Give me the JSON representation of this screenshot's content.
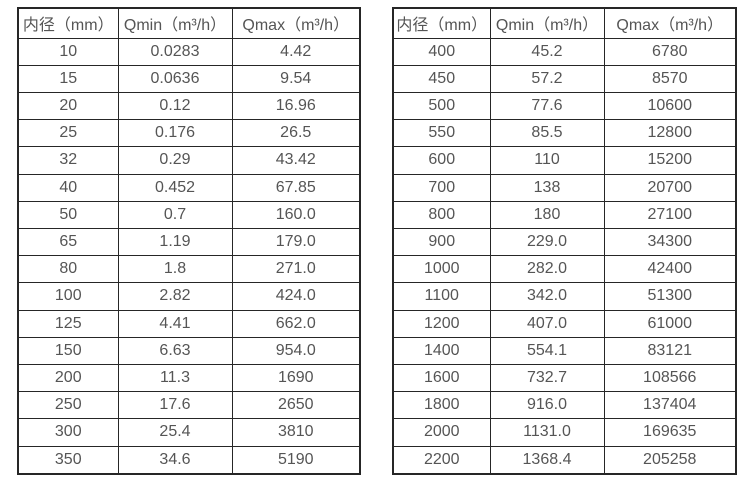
{
  "colors": {
    "background": "#ffffff",
    "text": "#555555",
    "border": "#262626"
  },
  "tables": [
    {
      "name": "flow-spec-small-diameters",
      "headers": [
        "内径（mm）",
        "Qmin（m³/h）",
        "Qmax（m³/h）"
      ],
      "rows": [
        [
          "10",
          "0.0283",
          "4.42"
        ],
        [
          "15",
          "0.0636",
          "9.54"
        ],
        [
          "20",
          "0.12",
          "16.96"
        ],
        [
          "25",
          "0.176",
          "26.5"
        ],
        [
          "32",
          "0.29",
          "43.42"
        ],
        [
          "40",
          "0.452",
          "67.85"
        ],
        [
          "50",
          "0.7",
          "160.0"
        ],
        [
          "65",
          "1.19",
          "179.0"
        ],
        [
          "80",
          "1.8",
          "271.0"
        ],
        [
          "100",
          "2.82",
          "424.0"
        ],
        [
          "125",
          "4.41",
          "662.0"
        ],
        [
          "150",
          "6.63",
          "954.0"
        ],
        [
          "200",
          "11.3",
          "1690"
        ],
        [
          "250",
          "17.6",
          "2650"
        ],
        [
          "300",
          "25.4",
          "3810"
        ],
        [
          "350",
          "34.6",
          "5190"
        ]
      ]
    },
    {
      "name": "flow-spec-large-diameters",
      "headers": [
        "内径（mm）",
        "Qmin（m³/h）",
        "Qmax（m³/h）"
      ],
      "rows": [
        [
          "400",
          "45.2",
          "6780"
        ],
        [
          "450",
          "57.2",
          "8570"
        ],
        [
          "500",
          "77.6",
          "10600"
        ],
        [
          "550",
          "85.5",
          "12800"
        ],
        [
          "600",
          "110",
          "15200"
        ],
        [
          "700",
          "138",
          "20700"
        ],
        [
          "800",
          "180",
          "27100"
        ],
        [
          "900",
          "229.0",
          "34300"
        ],
        [
          "1000",
          "282.0",
          "42400"
        ],
        [
          "1100",
          "342.0",
          "51300"
        ],
        [
          "1200",
          "407.0",
          "61000"
        ],
        [
          "1400",
          "554.1",
          "83121"
        ],
        [
          "1600",
          "732.7",
          "108566"
        ],
        [
          "1800",
          "916.0",
          "137404"
        ],
        [
          "2000",
          "1131.0",
          "169635"
        ],
        [
          "2200",
          "1368.4",
          "205258"
        ]
      ]
    }
  ]
}
